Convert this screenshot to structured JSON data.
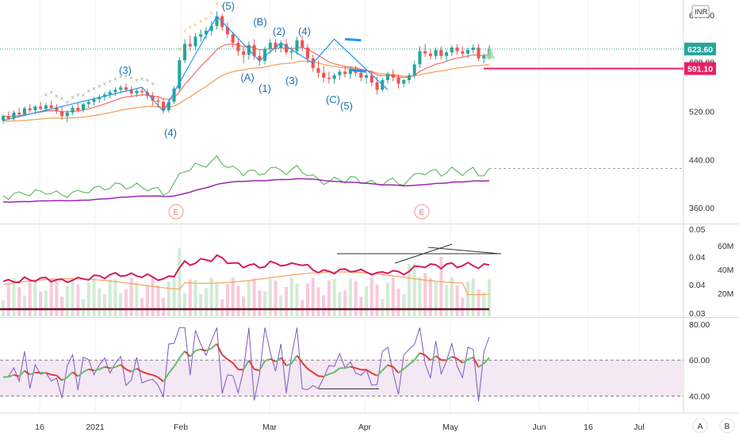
{
  "chart_data": {
    "type": "candlestick",
    "currency": "INR",
    "price_axis": {
      "ticks": [
        "680.00",
        "600.00",
        "520.00",
        "440.00",
        "360.00"
      ],
      "range": [
        335,
        705
      ]
    },
    "current_price": {
      "label": "623.60",
      "value": 623.6,
      "color": "#26a69a"
    },
    "level": {
      "label": "591.10",
      "value": 591.1,
      "color": "#e91e63"
    },
    "secondary_axis": {
      "ticks": [
        "0.05",
        "0.04",
        "0.04",
        "0.04",
        "0.03"
      ],
      "range": [
        0.029,
        0.051
      ]
    },
    "volume_axis": {
      "ticks": [
        "60M",
        "40M",
        "20M"
      ],
      "range": [
        0,
        80
      ]
    },
    "rsi_axis": {
      "ticks": [
        "80.00",
        "60.00",
        "40.00"
      ],
      "range": [
        31,
        83
      ],
      "band": [
        40,
        60
      ]
    },
    "time_axis": [
      "16",
      "2021",
      "Feb",
      "Mar",
      "Apr",
      "May",
      "Jun",
      "16",
      "Jul"
    ],
    "bottom_buttons": [
      "A",
      "B"
    ],
    "earnings_markers": [
      "E",
      "E"
    ],
    "wave_labels": [
      "(3)",
      "(4)",
      "(5)",
      "(B)",
      "(2)",
      "(4)",
      "(A)",
      "(1)",
      "(3)",
      "(C)",
      "(5)"
    ],
    "ohlc": [
      [
        505,
        515,
        500,
        512
      ],
      [
        512,
        520,
        506,
        508
      ],
      [
        508,
        522,
        505,
        518
      ],
      [
        518,
        526,
        512,
        515
      ],
      [
        515,
        528,
        512,
        525
      ],
      [
        525,
        532,
        518,
        522
      ],
      [
        522,
        530,
        515,
        528
      ],
      [
        528,
        536,
        522,
        524
      ],
      [
        524,
        534,
        520,
        530
      ],
      [
        530,
        538,
        524,
        526
      ],
      [
        526,
        532,
        516,
        520
      ],
      [
        520,
        528,
        506,
        512
      ],
      [
        512,
        522,
        502,
        518
      ],
      [
        518,
        530,
        514,
        526
      ],
      [
        526,
        534,
        518,
        522
      ],
      [
        522,
        534,
        518,
        532
      ],
      [
        532,
        540,
        526,
        536
      ],
      [
        536,
        544,
        530,
        540
      ],
      [
        540,
        548,
        534,
        544
      ],
      [
        544,
        552,
        538,
        548
      ],
      [
        548,
        556,
        542,
        552
      ],
      [
        552,
        560,
        546,
        556
      ],
      [
        556,
        564,
        550,
        560
      ],
      [
        560,
        566,
        552,
        556
      ],
      [
        556,
        562,
        546,
        550
      ],
      [
        550,
        558,
        544,
        554
      ],
      [
        554,
        560,
        546,
        552
      ],
      [
        552,
        558,
        540,
        546
      ],
      [
        546,
        552,
        530,
        538
      ],
      [
        538,
        546,
        526,
        536
      ],
      [
        536,
        542,
        516,
        522
      ],
      [
        522,
        540,
        518,
        536
      ],
      [
        536,
        562,
        532,
        558
      ],
      [
        558,
        610,
        554,
        605
      ],
      [
        605,
        640,
        600,
        632
      ],
      [
        632,
        646,
        620,
        628
      ],
      [
        628,
        650,
        622,
        644
      ],
      [
        644,
        656,
        636,
        648
      ],
      [
        648,
        660,
        640,
        654
      ],
      [
        654,
        670,
        646,
        662
      ],
      [
        662,
        686,
        656,
        678
      ],
      [
        678,
        682,
        654,
        660
      ],
      [
        660,
        668,
        642,
        648
      ],
      [
        648,
        652,
        626,
        634
      ],
      [
        634,
        640,
        612,
        620
      ],
      [
        620,
        628,
        600,
        614
      ],
      [
        614,
        636,
        606,
        630
      ],
      [
        630,
        640,
        606,
        612
      ],
      [
        612,
        620,
        596,
        604
      ],
      [
        604,
        628,
        598,
        624
      ],
      [
        624,
        640,
        616,
        634
      ],
      [
        634,
        640,
        618,
        626
      ],
      [
        626,
        638,
        618,
        632
      ],
      [
        632,
        640,
        614,
        618
      ],
      [
        618,
        628,
        606,
        620
      ],
      [
        620,
        644,
        614,
        638
      ],
      [
        638,
        646,
        620,
        626
      ],
      [
        626,
        632,
        600,
        608
      ],
      [
        608,
        614,
        586,
        592
      ],
      [
        592,
        604,
        576,
        584
      ],
      [
        584,
        596,
        568,
        576
      ],
      [
        576,
        586,
        566,
        574
      ],
      [
        574,
        584,
        566,
        580
      ],
      [
        580,
        590,
        572,
        586
      ],
      [
        586,
        596,
        576,
        582
      ],
      [
        582,
        594,
        574,
        590
      ],
      [
        590,
        596,
        578,
        584
      ],
      [
        584,
        590,
        570,
        576
      ],
      [
        576,
        584,
        566,
        580
      ],
      [
        580,
        588,
        562,
        568
      ],
      [
        568,
        578,
        548,
        556
      ],
      [
        556,
        576,
        552,
        572
      ],
      [
        572,
        586,
        566,
        582
      ],
      [
        582,
        590,
        570,
        576
      ],
      [
        576,
        582,
        558,
        566
      ],
      [
        566,
        574,
        560,
        572
      ],
      [
        572,
        584,
        566,
        580
      ],
      [
        580,
        604,
        574,
        598
      ],
      [
        598,
        628,
        592,
        620
      ],
      [
        620,
        632,
        610,
        616
      ],
      [
        616,
        624,
        606,
        612
      ],
      [
        612,
        626,
        606,
        622
      ],
      [
        622,
        628,
        606,
        612
      ],
      [
        612,
        622,
        604,
        618
      ],
      [
        618,
        630,
        612,
        626
      ],
      [
        626,
        632,
        614,
        620
      ],
      [
        620,
        628,
        610,
        616
      ],
      [
        616,
        626,
        608,
        622
      ],
      [
        622,
        632,
        616,
        626
      ],
      [
        626,
        632,
        604,
        608
      ],
      [
        608,
        616,
        600,
        612
      ],
      [
        612,
        630,
        606,
        624
      ]
    ]
  }
}
